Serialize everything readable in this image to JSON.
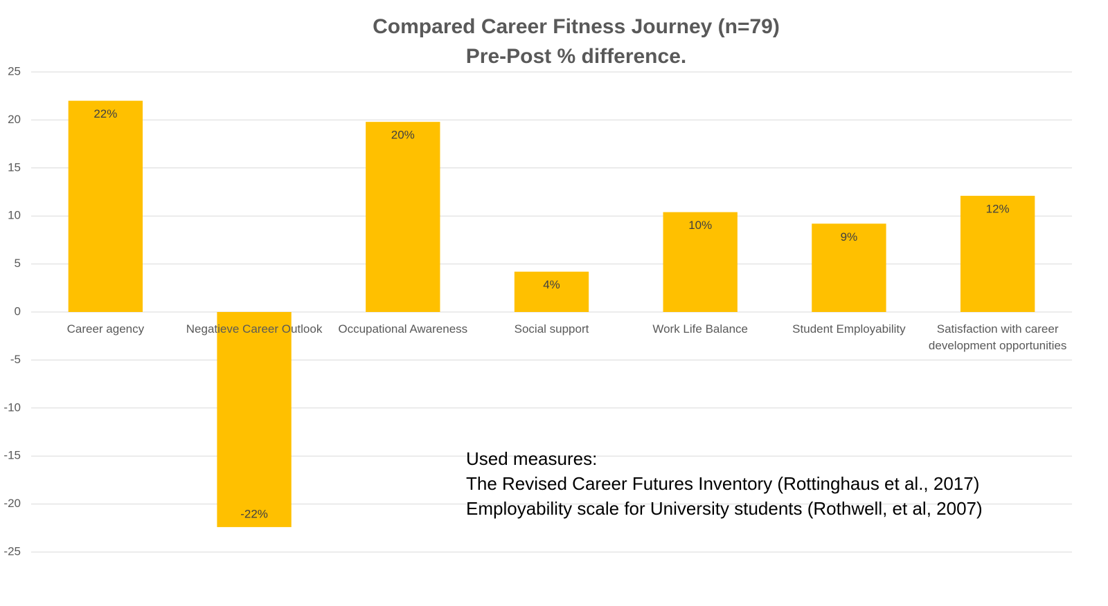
{
  "chart_data": {
    "type": "bar",
    "title": "Compared Career Fitness Journey (n=79)",
    "subtitle": "Pre-Post % difference.",
    "categories": [
      "Career agency",
      "Negatieve Career Outlook",
      "Occupational Awareness",
      "Social support",
      "Work Life Balance",
      "Student Employability",
      "Satisfaction with career development opportunities"
    ],
    "values": [
      22.0,
      -22.4,
      19.8,
      4.2,
      10.4,
      9.2,
      12.1
    ],
    "value_labels": [
      "22%",
      "-22%",
      "20%",
      "4%",
      "10%",
      "9%",
      "12%"
    ],
    "color": "#ffc000",
    "ylim": [
      -25,
      25
    ],
    "yticks": [
      -25,
      -20,
      -15,
      -10,
      -5,
      0,
      5,
      10,
      15,
      20,
      25
    ],
    "grid": true,
    "annotation": [
      "Used measures:",
      "The Revised Career Futures Inventory (Rottinghaus et al., 2017)",
      "Employability scale for University students (Rothwell, et al, 2007)"
    ]
  }
}
